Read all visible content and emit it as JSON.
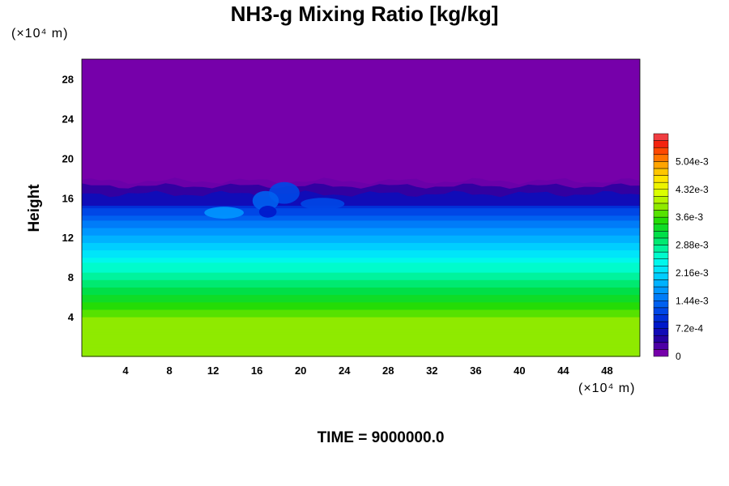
{
  "chart_data": {
    "type": "heatmap",
    "title": "NH3-g Mixing Ratio [kg/kg]",
    "ylabel": "Height",
    "x_unit": "(×10⁴ m)",
    "y_unit": "(×10⁴ m)",
    "footer": "TIME = 9000000.0",
    "xlim": [
      0,
      51
    ],
    "ylim": [
      0,
      30
    ],
    "x_ticks": [
      4,
      8,
      12,
      16,
      20,
      24,
      28,
      32,
      36,
      40,
      44,
      48
    ],
    "y_ticks": [
      4,
      8,
      12,
      16,
      20,
      24,
      28
    ],
    "colorbar": {
      "min": 0,
      "max": 0.00576,
      "step": 0.00018,
      "tick_values": [
        0,
        0.00072,
        0.00144,
        0.00216,
        0.00288,
        0.0036,
        0.00432,
        0.00504
      ],
      "tick_labels": [
        "0",
        "7.2e-4",
        "1.44e-3",
        "2.16e-3",
        "2.88e-3",
        "3.6e-3",
        "4.32e-3",
        "5.04e-3"
      ]
    },
    "vertical_profile": [
      {
        "height": 0,
        "value": 0.00384
      },
      {
        "height": 4,
        "value": 0.00378
      },
      {
        "height": 6,
        "value": 0.0033
      },
      {
        "height": 8,
        "value": 0.00282
      },
      {
        "height": 9.5,
        "value": 0.0025
      },
      {
        "height": 11,
        "value": 0.0021
      },
      {
        "height": 12.5,
        "value": 0.00175
      },
      {
        "height": 14,
        "value": 0.00135
      },
      {
        "height": 15.5,
        "value": 0.0009
      },
      {
        "height": 16.5,
        "value": 0.0004
      },
      {
        "height": 17.5,
        "value": 0.0001
      },
      {
        "height": 18,
        "value": 0
      },
      {
        "height": 30,
        "value": 0
      }
    ]
  }
}
